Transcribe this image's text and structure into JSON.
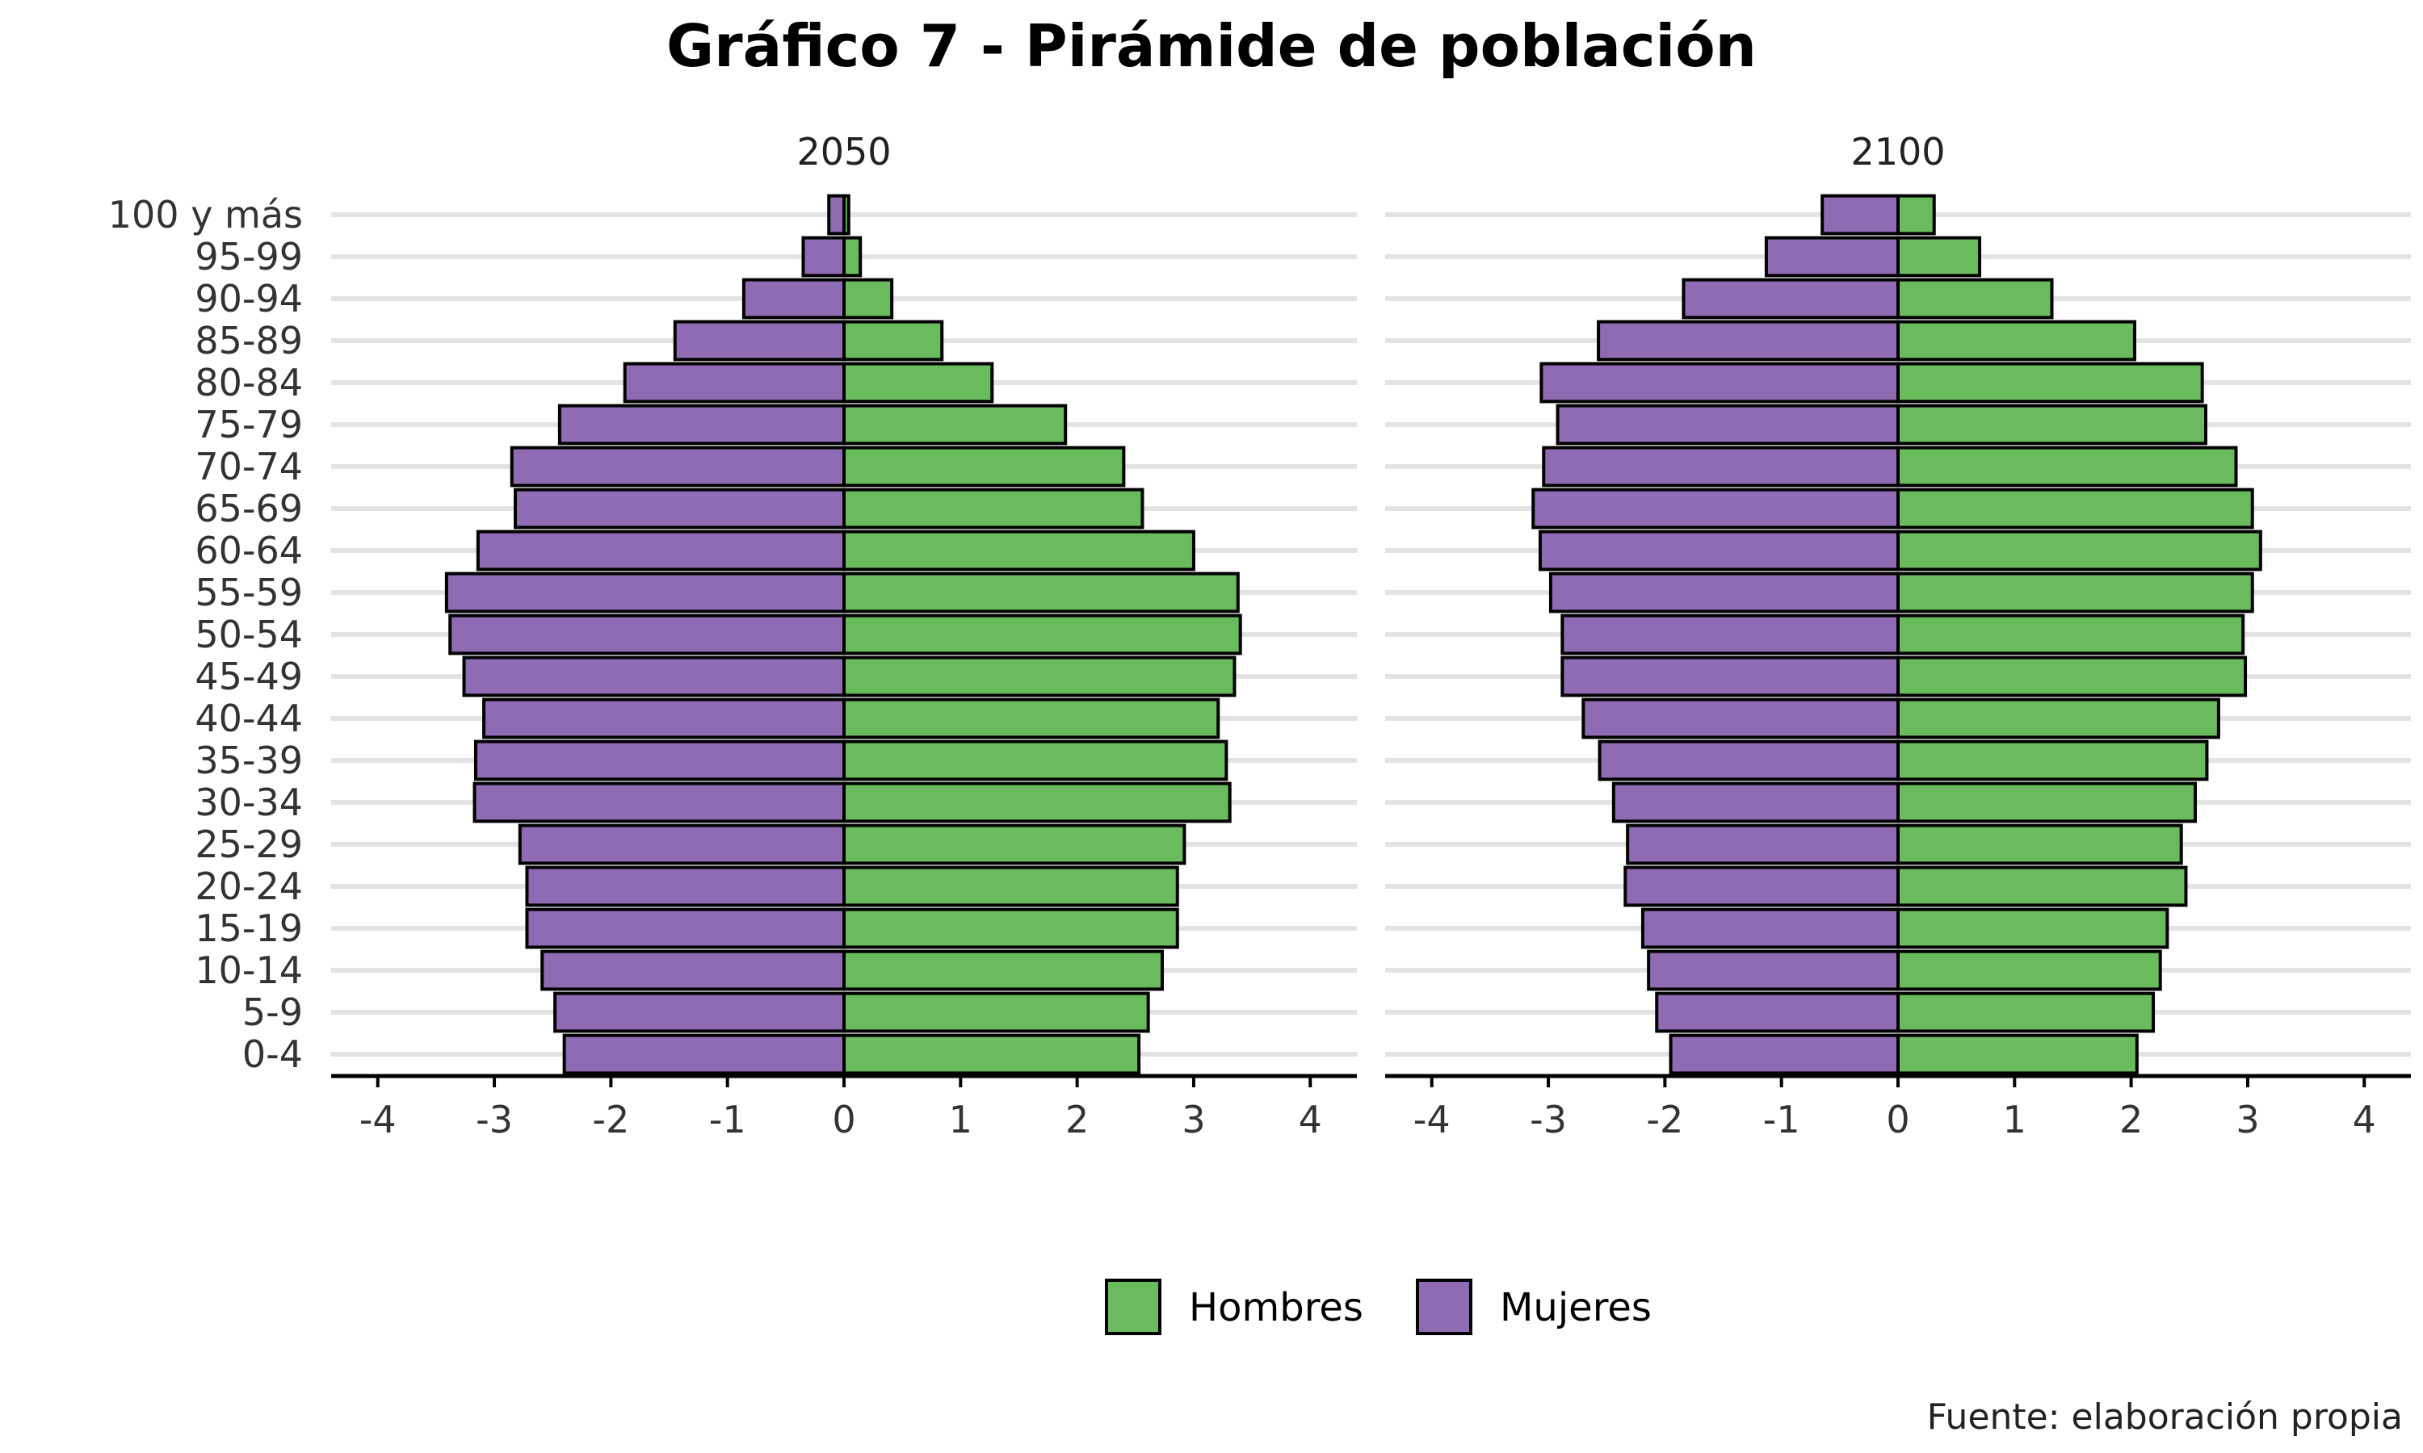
{
  "chart_data": {
    "type": "bar",
    "orientation": "horizontal",
    "title": "Gráfico 7 - Pirámide de población",
    "caption": "Fuente: elaboración propia",
    "categories": [
      "0-4",
      "5-9",
      "10-14",
      "15-19",
      "20-24",
      "25-29",
      "30-34",
      "35-39",
      "40-44",
      "45-49",
      "50-54",
      "55-59",
      "60-64",
      "65-69",
      "70-74",
      "75-79",
      "80-84",
      "85-89",
      "90-94",
      "95-99",
      "100 y más"
    ],
    "xlim": [
      -4.4,
      4.4
    ],
    "xticks": [
      -4,
      -3,
      -2,
      -1,
      0,
      1,
      2,
      3,
      4
    ],
    "grid": true,
    "legend_position": "bottom",
    "legend": [
      {
        "name": "Hombres",
        "color": "#6abb5d"
      },
      {
        "name": "Mujeres",
        "color": "#8e6bb2"
      }
    ],
    "panels": [
      {
        "title": "2050",
        "series": [
          {
            "name": "Hombres",
            "color": "#6abb5d",
            "values": [
              2.53,
              2.61,
              2.73,
              2.86,
              2.86,
              2.92,
              3.31,
              3.28,
              3.21,
              3.35,
              3.4,
              3.38,
              3.0,
              2.56,
              2.4,
              1.9,
              1.27,
              0.84,
              0.41,
              0.14,
              0.04
            ]
          },
          {
            "name": "Mujeres",
            "color": "#8e6bb2",
            "values": [
              -2.4,
              -2.48,
              -2.59,
              -2.72,
              -2.72,
              -2.78,
              -3.17,
              -3.16,
              -3.09,
              -3.26,
              -3.38,
              -3.41,
              -3.14,
              -2.82,
              -2.85,
              -2.44,
              -1.88,
              -1.45,
              -0.86,
              -0.35,
              -0.13
            ]
          }
        ]
      },
      {
        "title": "2100",
        "series": [
          {
            "name": "Hombres",
            "color": "#6abb5d",
            "values": [
              2.05,
              2.19,
              2.25,
              2.31,
              2.47,
              2.43,
              2.55,
              2.65,
              2.75,
              2.98,
              2.96,
              3.04,
              3.11,
              3.04,
              2.9,
              2.64,
              2.61,
              2.03,
              1.32,
              0.7,
              0.31
            ]
          },
          {
            "name": "Mujeres",
            "color": "#8e6bb2",
            "values": [
              -1.95,
              -2.07,
              -2.14,
              -2.19,
              -2.34,
              -2.32,
              -2.44,
              -2.56,
              -2.7,
              -2.88,
              -2.88,
              -2.98,
              -3.07,
              -3.13,
              -3.04,
              -2.92,
              -3.06,
              -2.57,
              -1.84,
              -1.13,
              -0.65
            ]
          }
        ]
      }
    ]
  }
}
